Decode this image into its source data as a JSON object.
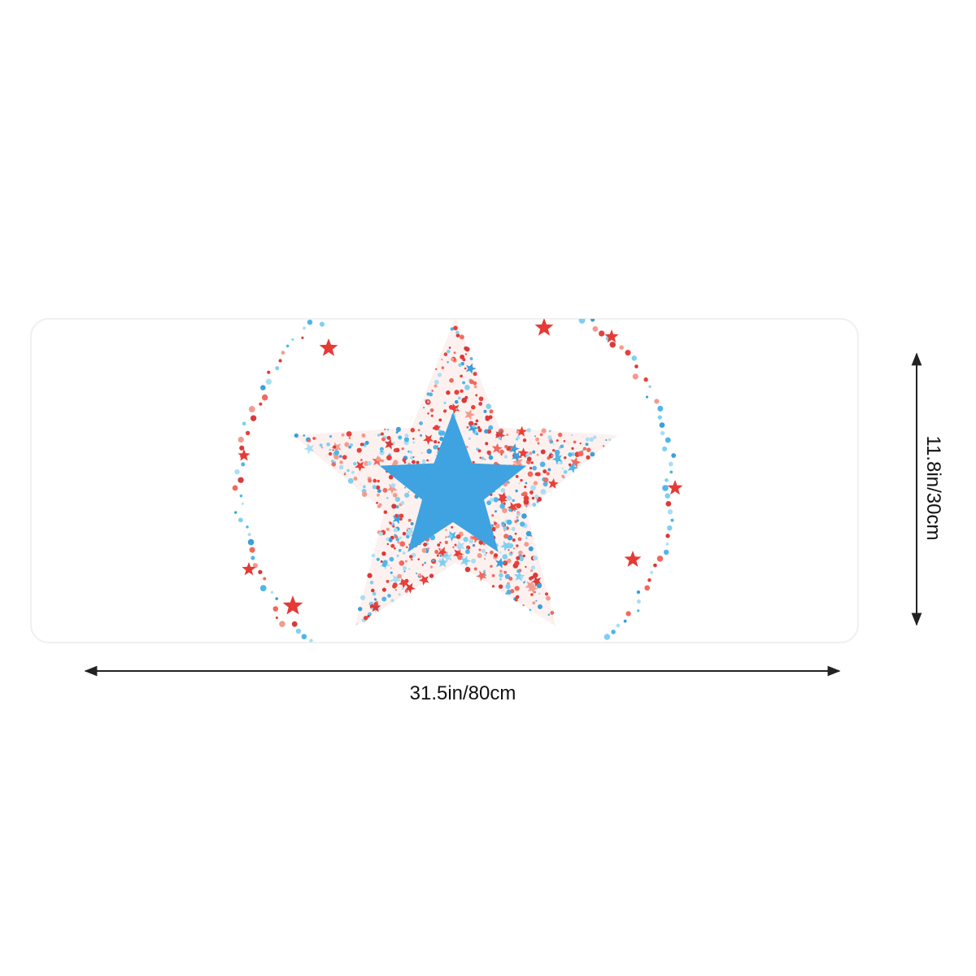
{
  "width_label": "31.5in/80cm",
  "height_label": "11.8in/30cm"
}
